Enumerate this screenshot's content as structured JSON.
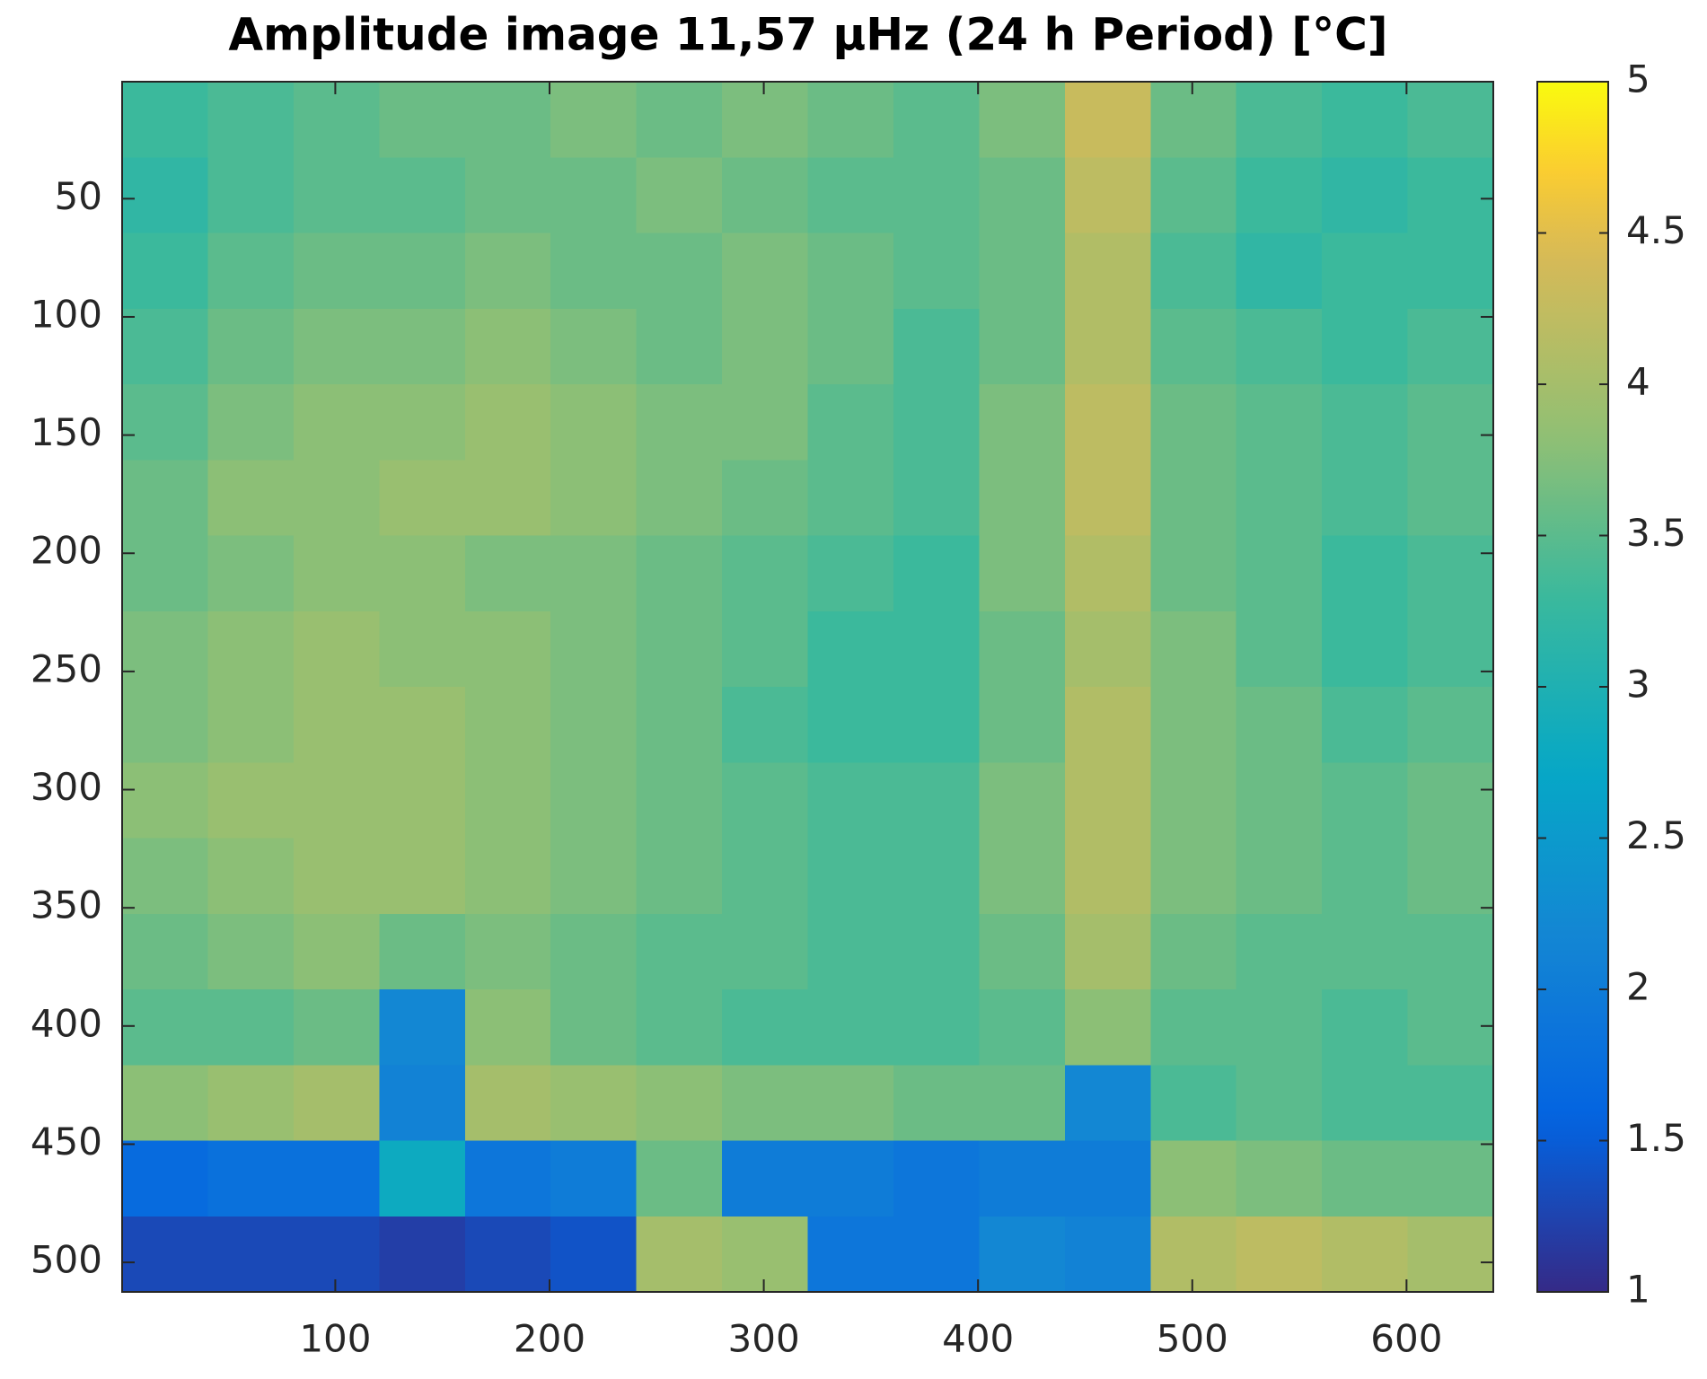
{
  "chart_data": {
    "type": "heatmap",
    "title": "Amplitude image 11,57 µHz (24 h Period) [°C]",
    "colormap": "parula",
    "xlim": [
      0.5,
      640.5
    ],
    "ylim": [
      0.5,
      512.5
    ],
    "y_reversed": true,
    "xticks": [
      100,
      200,
      300,
      400,
      500,
      600
    ],
    "yticks": [
      50,
      100,
      150,
      200,
      250,
      300,
      350,
      400,
      450,
      500
    ],
    "clim": [
      1,
      5
    ],
    "cticks": [
      1,
      1.5,
      2,
      2.5,
      3,
      3.5,
      4,
      4.5,
      5
    ],
    "z": [
      [
        3.3,
        3.4,
        3.5,
        3.6,
        3.6,
        3.7,
        3.6,
        3.7,
        3.6,
        3.5,
        3.7,
        4.3,
        3.6,
        3.4,
        3.3,
        3.4
      ],
      [
        3.2,
        3.4,
        3.5,
        3.5,
        3.6,
        3.6,
        3.7,
        3.6,
        3.5,
        3.5,
        3.6,
        4.2,
        3.5,
        3.3,
        3.2,
        3.3
      ],
      [
        3.3,
        3.5,
        3.6,
        3.6,
        3.7,
        3.6,
        3.6,
        3.7,
        3.6,
        3.5,
        3.6,
        4.1,
        3.4,
        3.2,
        3.3,
        3.3
      ],
      [
        3.4,
        3.6,
        3.7,
        3.7,
        3.8,
        3.7,
        3.6,
        3.7,
        3.6,
        3.4,
        3.6,
        4.1,
        3.5,
        3.4,
        3.3,
        3.4
      ],
      [
        3.5,
        3.7,
        3.8,
        3.8,
        3.9,
        3.8,
        3.7,
        3.7,
        3.5,
        3.4,
        3.7,
        4.2,
        3.6,
        3.5,
        3.4,
        3.5
      ],
      [
        3.6,
        3.8,
        3.8,
        3.9,
        3.9,
        3.8,
        3.7,
        3.6,
        3.5,
        3.4,
        3.7,
        4.2,
        3.6,
        3.5,
        3.4,
        3.5
      ],
      [
        3.6,
        3.7,
        3.8,
        3.8,
        3.7,
        3.7,
        3.6,
        3.5,
        3.4,
        3.3,
        3.7,
        4.1,
        3.6,
        3.5,
        3.3,
        3.4
      ],
      [
        3.7,
        3.8,
        3.9,
        3.8,
        3.8,
        3.7,
        3.6,
        3.5,
        3.3,
        3.3,
        3.6,
        4.0,
        3.7,
        3.5,
        3.3,
        3.4
      ],
      [
        3.7,
        3.8,
        3.9,
        3.9,
        3.8,
        3.7,
        3.6,
        3.4,
        3.3,
        3.3,
        3.6,
        4.1,
        3.7,
        3.6,
        3.4,
        3.5
      ],
      [
        3.8,
        3.9,
        3.9,
        3.9,
        3.8,
        3.7,
        3.6,
        3.5,
        3.4,
        3.4,
        3.7,
        4.1,
        3.7,
        3.6,
        3.5,
        3.6
      ],
      [
        3.7,
        3.8,
        3.9,
        3.9,
        3.8,
        3.7,
        3.6,
        3.5,
        3.4,
        3.4,
        3.7,
        4.1,
        3.7,
        3.6,
        3.5,
        3.6
      ],
      [
        3.6,
        3.7,
        3.8,
        3.6,
        3.7,
        3.6,
        3.5,
        3.5,
        3.4,
        3.4,
        3.6,
        4.0,
        3.6,
        3.5,
        3.5,
        3.5
      ],
      [
        3.5,
        3.5,
        3.6,
        2.2,
        3.8,
        3.6,
        3.5,
        3.4,
        3.4,
        3.4,
        3.5,
        3.8,
        3.5,
        3.5,
        3.4,
        3.5
      ],
      [
        3.8,
        3.9,
        4.0,
        2.1,
        4.0,
        3.9,
        3.8,
        3.7,
        3.7,
        3.6,
        3.6,
        2.2,
        3.4,
        3.5,
        3.4,
        3.4
      ],
      [
        1.7,
        1.8,
        1.8,
        2.8,
        1.9,
        2.0,
        3.6,
        2.0,
        2.0,
        1.9,
        2.0,
        2.0,
        3.8,
        3.7,
        3.6,
        3.6
      ],
      [
        1.3,
        1.3,
        1.3,
        1.2,
        1.3,
        1.4,
        4.0,
        3.9,
        1.9,
        1.9,
        2.2,
        2.1,
        4.1,
        4.2,
        4.1,
        4.0
      ]
    ]
  }
}
